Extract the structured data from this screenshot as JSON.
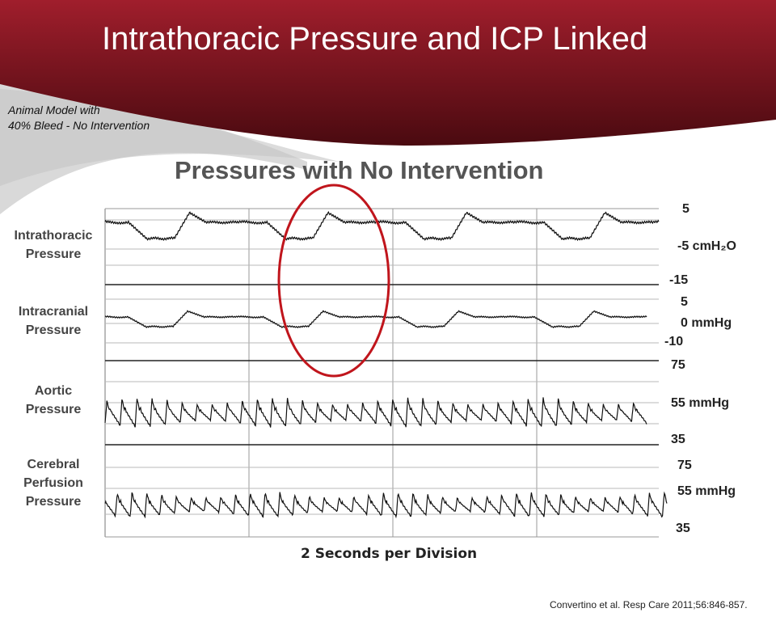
{
  "title": "Intrathoracic Pressure and ICP Linked",
  "note": {
    "line1": "Animal Model with",
    "line2": "40% Bleed - No Intervention"
  },
  "colors": {
    "brand_red": "#a01e2c",
    "dark_red": "#5a0d15",
    "highlight": "#c0151c",
    "trace": "#111111"
  },
  "chart_data": {
    "type": "line",
    "title": "Pressures with No Intervention",
    "xlabel": "2 Seconds per Division",
    "grid": true,
    "x_divisions": 4,
    "series": [
      {
        "name": "Intrathoracic Pressure",
        "label_lines": [
          "Intrathoracic",
          "Pressure"
        ],
        "unit": "cmH2O",
        "ticks": [
          "5",
          "-5 cmH₂O",
          "-15"
        ],
        "ylim": [
          -15,
          5
        ],
        "pattern": "breath",
        "cycles": 4
      },
      {
        "name": "Intracranial Pressure",
        "label_lines": [
          "Intracranial",
          "Pressure"
        ],
        "unit": "mmHg",
        "ticks": [
          "5",
          "0 mmHg",
          "-10"
        ],
        "ylim": [
          -10,
          5
        ],
        "pattern": "breath",
        "cycles": 4
      },
      {
        "name": "Aortic Pressure",
        "label_lines": [
          "Aortic",
          "Pressure"
        ],
        "unit": "mmHg",
        "ticks": [
          "75",
          "55 mmHg",
          "35"
        ],
        "ylim": [
          35,
          75
        ],
        "pattern": "pulse",
        "cycles": 36
      },
      {
        "name": "Cerebral Perfusion Pressure",
        "label_lines": [
          "Cerebral",
          "Perfusion",
          "Pressure"
        ],
        "unit": "mmHg",
        "ticks": [
          "75",
          "55 mmHg",
          "35"
        ],
        "ylim": [
          35,
          75
        ],
        "pattern": "pulse",
        "cycles": 38
      }
    ]
  },
  "citation": "Convertino et al. Resp Care 2011;56:846-857."
}
